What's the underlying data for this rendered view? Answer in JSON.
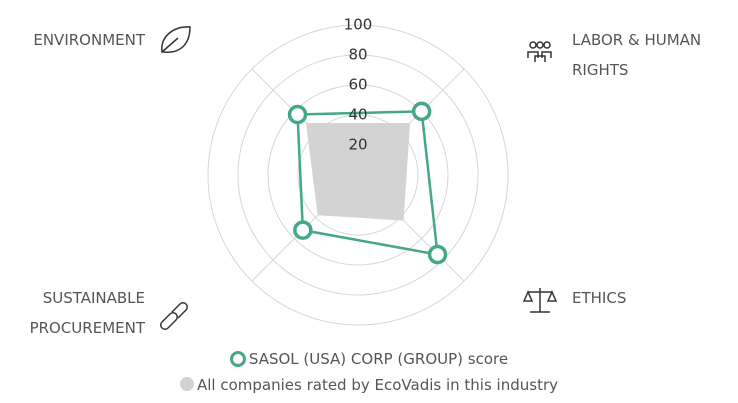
{
  "chart_data": {
    "type": "radar",
    "categories": [
      "ENVIRONMENT",
      "LABOR & HUMAN RIGHTS",
      "ETHICS",
      "SUSTAINABLE PROCUREMENT"
    ],
    "series": [
      {
        "name": "SASOL (USA) CORP (GROUP) score",
        "color": "#45a882",
        "values": [
          57,
          60,
          75,
          52
        ]
      },
      {
        "name": "All companies rated by EcoVadis in this industry",
        "color": "#d3d3d3",
        "values": [
          49,
          49,
          43,
          38
        ]
      }
    ],
    "rlim": [
      0,
      100
    ],
    "rticks": [
      20,
      40,
      60,
      80,
      100
    ]
  }
}
